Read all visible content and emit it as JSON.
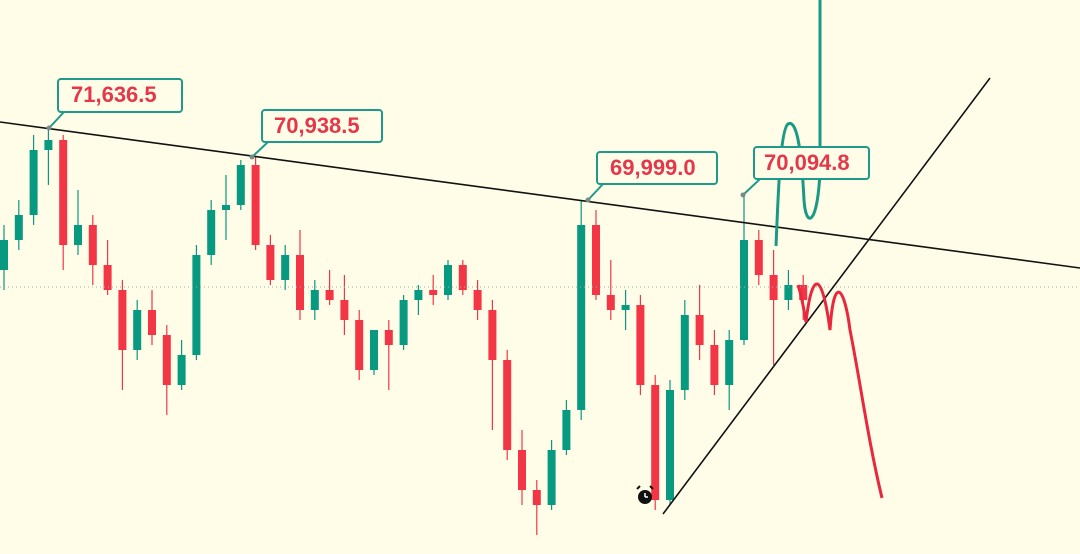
{
  "chart_data": {
    "type": "candlestick",
    "ylim": [
      62212,
      74400
    ],
    "up_color": "#089981",
    "down_color": "#f23645",
    "open": [
      68460,
      69120,
      69670,
      71100,
      71320,
      69010,
      69450,
      68570,
      68020,
      66700,
      67580,
      67030,
      65930,
      66590,
      68790,
      69780,
      69890,
      70770,
      69010,
      68240,
      68790,
      67580,
      68020,
      67800,
      67360,
      66260,
      67140,
      66810,
      67800,
      68020,
      67910,
      68570,
      68020,
      67580,
      66480,
      64500,
      63620,
      63290,
      64500,
      65380,
      69450,
      67910,
      67580,
      67690,
      65930,
      63400,
      65820,
      67470,
      66810,
      65930,
      66920,
      69120,
      68350,
      67800,
      68130
    ],
    "high": [
      69450,
      70000,
      71430,
      71584,
      71430,
      70220,
      69670,
      69120,
      68240,
      67800,
      68020,
      67250,
      66920,
      69010,
      70000,
      70550,
      70880,
      70946,
      69230,
      69010,
      69340,
      68240,
      68460,
      68350,
      67580,
      67140,
      67360,
      67910,
      68130,
      68350,
      68680,
      68680,
      68240,
      67800,
      66700,
      64940,
      63840,
      64720,
      65600,
      70000,
      69780,
      68680,
      68020,
      67910,
      66150,
      66040,
      67800,
      68130,
      67140,
      67140,
      70110,
      69340,
      68900,
      68460,
      68350
    ],
    "low": [
      68020,
      68900,
      69450,
      70330,
      68460,
      68790,
      68130,
      67910,
      65820,
      66480,
      66810,
      65270,
      65820,
      66480,
      68570,
      69120,
      69780,
      68900,
      68130,
      68020,
      67360,
      67360,
      67690,
      67030,
      66040,
      66150,
      65820,
      66700,
      67470,
      67690,
      67800,
      67910,
      67360,
      64940,
      64280,
      63290,
      62630,
      63180,
      64390,
      65160,
      67800,
      67360,
      67140,
      65710,
      63180,
      63290,
      65600,
      66480,
      65710,
      65380,
      66810,
      68130,
      66370,
      67580,
      67360
    ],
    "close": [
      69120,
      69670,
      71100,
      71320,
      69010,
      69450,
      68570,
      68020,
      66700,
      67580,
      67030,
      65930,
      66590,
      68790,
      69780,
      69890,
      70770,
      69010,
      68240,
      68790,
      67580,
      68020,
      67800,
      67360,
      66260,
      67140,
      66810,
      67800,
      68020,
      67910,
      68570,
      68020,
      67580,
      66480,
      64500,
      63620,
      63290,
      64500,
      65380,
      69450,
      67910,
      67580,
      67690,
      65930,
      63400,
      65820,
      67470,
      66810,
      65930,
      66920,
      69120,
      68350,
      67800,
      68130,
      67800
    ],
    "annotations": [
      "71,636.5",
      "70,938.5",
      "69,999.0",
      "70,094.8"
    ]
  }
}
